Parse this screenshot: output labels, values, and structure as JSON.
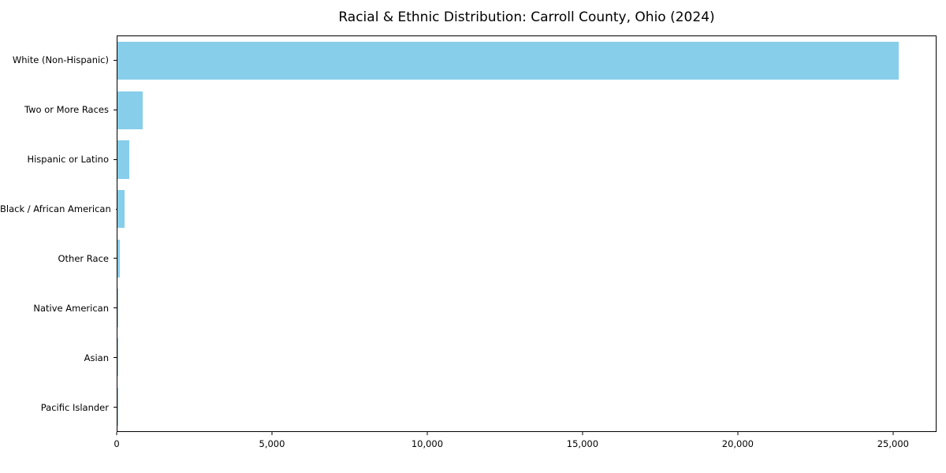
{
  "chart_data": {
    "type": "bar",
    "orientation": "horizontal",
    "title": "Racial & Ethnic Distribution: Carroll County, Ohio (2024)",
    "xlabel": "",
    "ylabel": "",
    "categories": [
      "White (Non-Hispanic)",
      "Two or More Races",
      "Hispanic or Latino",
      "Black / African American",
      "Other Race",
      "Native American",
      "Asian",
      "Pacific Islander"
    ],
    "values": [
      25200,
      810,
      380,
      230,
      75,
      30,
      15,
      5
    ],
    "bar_color": "#87CEEB",
    "xlim": [
      0,
      26400
    ],
    "x_ticks": [
      0,
      5000,
      10000,
      15000,
      20000,
      25000
    ],
    "x_tick_labels": [
      "0",
      "5,000",
      "10,000",
      "15,000",
      "20,000",
      "25,000"
    ],
    "grid": false,
    "legend": false
  }
}
